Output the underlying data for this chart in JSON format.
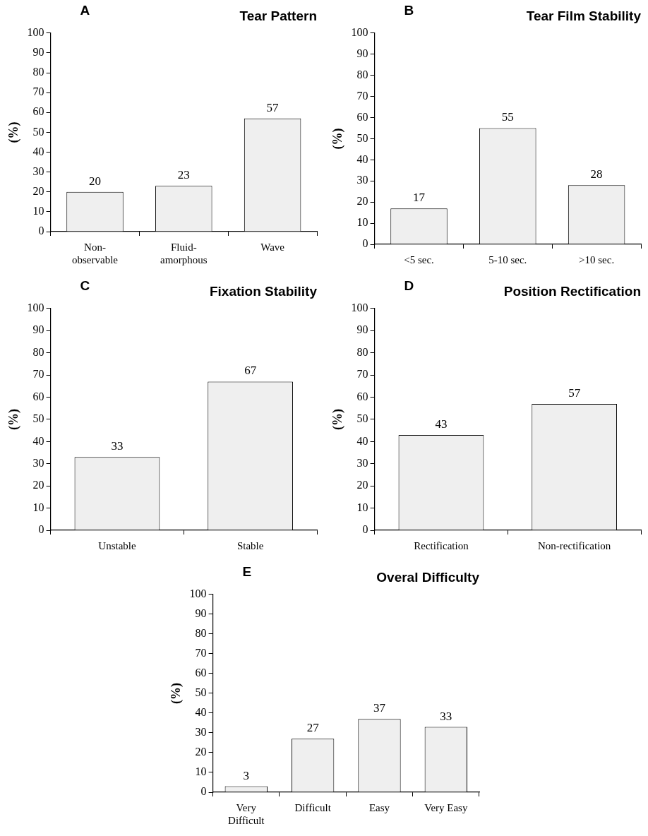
{
  "chart_data": [
    {
      "type": "bar",
      "title": "Tear Pattern",
      "annotations": [
        "A"
      ],
      "ylabel": "(%)",
      "categories": [
        "Non-\nobservable",
        "Fluid-\namorphous",
        "Wave"
      ],
      "values": [
        20,
        23,
        57
      ],
      "color": "#efefef",
      "ylim": [
        0,
        100
      ],
      "yticks": [
        0,
        10,
        20,
        30,
        40,
        50,
        60,
        70,
        80,
        90,
        100
      ],
      "data_labels": true,
      "legend": false,
      "grid": false
    },
    {
      "type": "bar",
      "title": "Tear Film Stability",
      "annotations": [
        "B"
      ],
      "ylabel": "(%)",
      "categories": [
        "<5 sec.",
        "5-10 sec.",
        ">10 sec."
      ],
      "values": [
        17,
        55,
        28
      ],
      "color": "#efefef",
      "ylim": [
        0,
        100
      ],
      "yticks": [
        0,
        10,
        20,
        30,
        40,
        50,
        60,
        70,
        80,
        90,
        100
      ],
      "data_labels": true,
      "legend": false,
      "grid": false
    },
    {
      "type": "bar",
      "title": "Fixation Stability",
      "annotations": [
        "C"
      ],
      "ylabel": "(%)",
      "categories": [
        "Unstable",
        "Stable"
      ],
      "values": [
        33,
        67
      ],
      "color": "#efefef",
      "ylim": [
        0,
        100
      ],
      "yticks": [
        0,
        10,
        20,
        30,
        40,
        50,
        60,
        70,
        80,
        90,
        100
      ],
      "data_labels": true,
      "legend": false,
      "grid": false
    },
    {
      "type": "bar",
      "title": "Position Rectification",
      "annotations": [
        "D"
      ],
      "ylabel": "(%)",
      "categories": [
        "Rectification",
        "Non-rectification"
      ],
      "values": [
        43,
        57
      ],
      "color": "#efefef",
      "ylim": [
        0,
        100
      ],
      "yticks": [
        0,
        10,
        20,
        30,
        40,
        50,
        60,
        70,
        80,
        90,
        100
      ],
      "data_labels": true,
      "legend": false,
      "grid": false
    },
    {
      "type": "bar",
      "title": "Overal Difficulty",
      "annotations": [
        "E"
      ],
      "ylabel": "(%)",
      "categories": [
        "Very\nDifficult",
        "Difficult",
        "Easy",
        "Very Easy"
      ],
      "values": [
        3,
        27,
        37,
        33
      ],
      "color": "#efefef",
      "ylim": [
        0,
        100
      ],
      "yticks": [
        0,
        10,
        20,
        30,
        40,
        50,
        60,
        70,
        80,
        90,
        100
      ],
      "data_labels": true,
      "legend": false,
      "grid": false
    }
  ]
}
